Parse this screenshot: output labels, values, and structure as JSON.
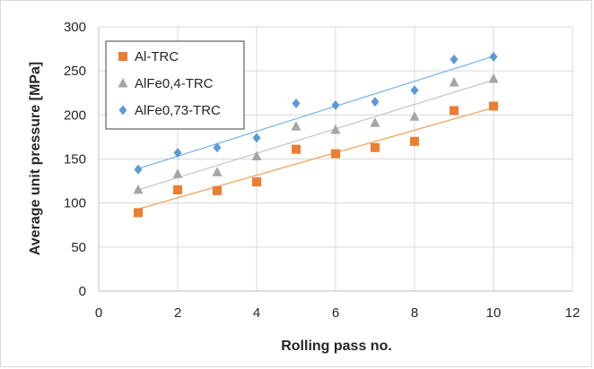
{
  "chart_data": {
    "type": "scatter",
    "xlabel": "Rolling pass no.",
    "ylabel": "Average unit pressure [MPa]",
    "xlim": [
      0,
      12
    ],
    "ylim": [
      0,
      300
    ],
    "xticks": [
      0,
      2,
      4,
      6,
      8,
      10,
      12
    ],
    "yticks": [
      0,
      50,
      100,
      150,
      200,
      250,
      300
    ],
    "grid": true,
    "legend_position": "top-left",
    "trendlines": "linear",
    "series": [
      {
        "name": "Al-TRC",
        "marker": "square",
        "color": "#ED7D31",
        "trend_color": "#F4A460",
        "x": [
          1,
          2,
          3,
          4,
          5,
          6,
          7,
          8,
          9,
          10
        ],
        "y": [
          89,
          115,
          114,
          124,
          161,
          156,
          163,
          170,
          205,
          210
        ]
      },
      {
        "name": "AlFe0,4-TRC",
        "marker": "triangle",
        "color": "#A5A5A5",
        "trend_color": "#C9C9C9",
        "x": [
          1,
          2,
          3,
          4,
          5,
          6,
          7,
          8,
          9,
          10
        ],
        "y": [
          115,
          133,
          135,
          153,
          187,
          183,
          191,
          198,
          237,
          241
        ]
      },
      {
        "name": "AlFe0,73-TRC",
        "marker": "diamond",
        "color": "#5B9BD5",
        "trend_color": "#7FB7E6",
        "x": [
          1,
          2,
          3,
          4,
          5,
          6,
          7,
          8,
          9,
          10
        ],
        "y": [
          138,
          157,
          163,
          174,
          213,
          211,
          215,
          228,
          263,
          266
        ]
      }
    ]
  }
}
